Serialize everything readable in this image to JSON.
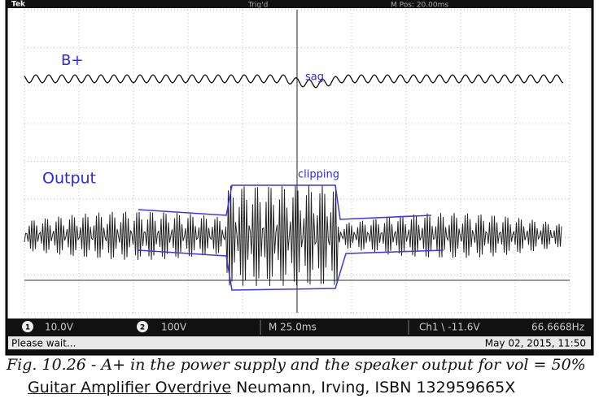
{
  "scope": {
    "top_bar": {
      "brand": "Tek",
      "trigger_status": "Trig'd",
      "position": "M Pos: 20.00ms"
    },
    "annotations": {
      "supply": "B+",
      "sag": "sag",
      "output": "Output",
      "clipping": "clipping"
    },
    "status_bar": {
      "ch1_badge": "1",
      "ch1_scale": "10.0V",
      "ch2_badge": "2",
      "ch2_scale": "100V",
      "timebase": "M 25.0ms",
      "trigger": "Ch1 \\ -11.6V",
      "frequency": "66.6668Hz",
      "message": "Please wait...",
      "timestamp": "May 02, 2015, 11:50"
    }
  },
  "caption": {
    "figure": "Fig. 10.26 - A+ in the power supply and the speaker output for vol = 50%",
    "book_title": "Guitar Amplifier Overdrive",
    "credit": "Neumann, Irving, ISBN 132959665X"
  }
}
